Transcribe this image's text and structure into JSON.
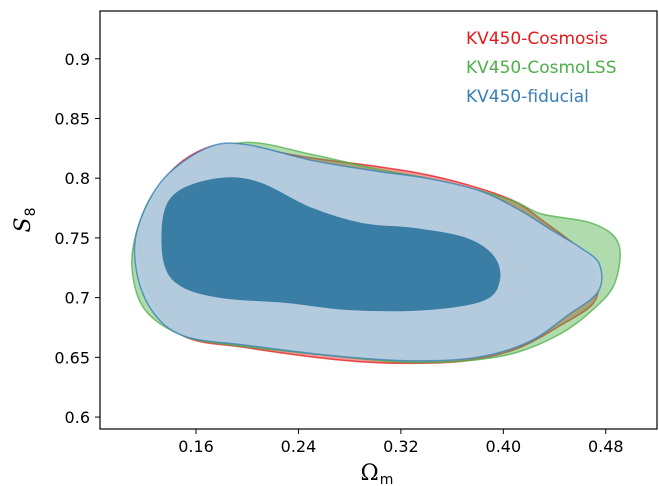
{
  "chart_data": {
    "type": "contour",
    "xlabel": {
      "main": "Ω",
      "sub": "m"
    },
    "ylabel": {
      "main": "S",
      "sub": "8"
    },
    "xlim": [
      0.085,
      0.52
    ],
    "ylim": [
      0.59,
      0.94
    ],
    "xticks": [
      0.16,
      0.24,
      0.32,
      0.4,
      0.48
    ],
    "xtick_labels": [
      "0.16",
      "0.24",
      "0.32",
      "0.40",
      "0.48"
    ],
    "yticks": [
      0.6,
      0.65,
      0.7,
      0.75,
      0.8,
      0.85,
      0.9
    ],
    "ytick_labels": [
      "0.6",
      "0.65",
      "0.7",
      "0.75",
      "0.8",
      "0.85",
      "0.9"
    ],
    "legend_position": "top-right",
    "series": [
      {
        "name": "KV450-Cosmosis",
        "color": "#e41a1c",
        "outer_contour": [
          [
            0.12,
            0.765
          ],
          [
            0.14,
            0.805
          ],
          [
            0.17,
            0.826
          ],
          [
            0.2,
            0.826
          ],
          [
            0.25,
            0.817
          ],
          [
            0.3,
            0.81
          ],
          [
            0.34,
            0.803
          ],
          [
            0.38,
            0.792
          ],
          [
            0.41,
            0.78
          ],
          [
            0.43,
            0.765
          ],
          [
            0.46,
            0.74
          ],
          [
            0.473,
            0.715
          ],
          [
            0.47,
            0.695
          ],
          [
            0.445,
            0.677
          ],
          [
            0.41,
            0.657
          ],
          [
            0.37,
            0.647
          ],
          [
            0.32,
            0.645
          ],
          [
            0.27,
            0.648
          ],
          [
            0.2,
            0.658
          ],
          [
            0.15,
            0.668
          ],
          [
            0.125,
            0.7
          ],
          [
            0.115,
            0.74
          ],
          [
            0.12,
            0.765
          ]
        ]
      },
      {
        "name": "KV450-CosmoLSS",
        "color": "#4daf4a",
        "outer_contour": [
          [
            0.115,
            0.76
          ],
          [
            0.13,
            0.792
          ],
          [
            0.16,
            0.818
          ],
          [
            0.2,
            0.83
          ],
          [
            0.25,
            0.82
          ],
          [
            0.3,
            0.808
          ],
          [
            0.34,
            0.8
          ],
          [
            0.38,
            0.79
          ],
          [
            0.41,
            0.78
          ],
          [
            0.43,
            0.77
          ],
          [
            0.47,
            0.762
          ],
          [
            0.49,
            0.745
          ],
          [
            0.487,
            0.712
          ],
          [
            0.47,
            0.69
          ],
          [
            0.445,
            0.67
          ],
          [
            0.41,
            0.654
          ],
          [
            0.37,
            0.647
          ],
          [
            0.32,
            0.646
          ],
          [
            0.26,
            0.652
          ],
          [
            0.19,
            0.66
          ],
          [
            0.15,
            0.668
          ],
          [
            0.12,
            0.69
          ],
          [
            0.11,
            0.725
          ],
          [
            0.115,
            0.76
          ]
        ]
      },
      {
        "name": "KV450-fiducial",
        "color": "#377eb8",
        "outer_contour": [
          [
            0.115,
            0.76
          ],
          [
            0.135,
            0.8
          ],
          [
            0.17,
            0.826
          ],
          [
            0.2,
            0.828
          ],
          [
            0.25,
            0.815
          ],
          [
            0.3,
            0.806
          ],
          [
            0.34,
            0.8
          ],
          [
            0.38,
            0.79
          ],
          [
            0.41,
            0.775
          ],
          [
            0.44,
            0.755
          ],
          [
            0.46,
            0.742
          ],
          [
            0.475,
            0.728
          ],
          [
            0.474,
            0.705
          ],
          [
            0.45,
            0.685
          ],
          [
            0.42,
            0.663
          ],
          [
            0.38,
            0.65
          ],
          [
            0.33,
            0.647
          ],
          [
            0.27,
            0.651
          ],
          [
            0.2,
            0.66
          ],
          [
            0.15,
            0.668
          ],
          [
            0.125,
            0.69
          ],
          [
            0.113,
            0.725
          ],
          [
            0.115,
            0.76
          ]
        ],
        "inner_contour": [
          [
            0.135,
            0.77
          ],
          [
            0.148,
            0.79
          ],
          [
            0.18,
            0.8
          ],
          [
            0.21,
            0.796
          ],
          [
            0.25,
            0.775
          ],
          [
            0.29,
            0.762
          ],
          [
            0.33,
            0.758
          ],
          [
            0.37,
            0.75
          ],
          [
            0.392,
            0.735
          ],
          [
            0.397,
            0.715
          ],
          [
            0.385,
            0.698
          ],
          [
            0.34,
            0.69
          ],
          [
            0.28,
            0.69
          ],
          [
            0.23,
            0.696
          ],
          [
            0.18,
            0.7
          ],
          [
            0.148,
            0.71
          ],
          [
            0.135,
            0.73
          ],
          [
            0.135,
            0.77
          ]
        ]
      }
    ]
  }
}
